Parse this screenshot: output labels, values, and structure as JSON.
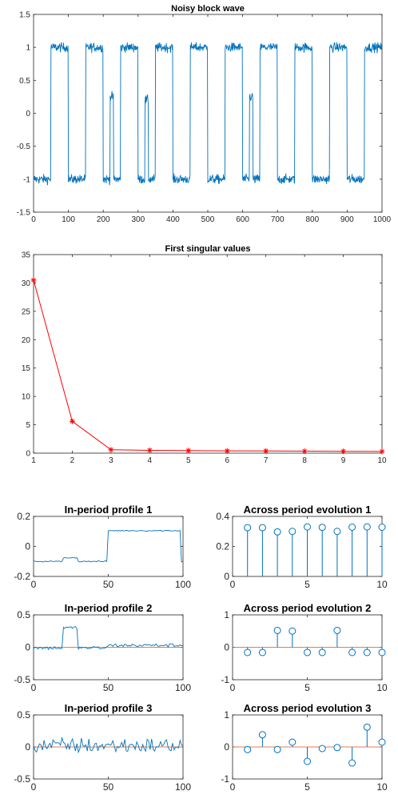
{
  "colors": {
    "signal": "#0072BD",
    "singular": "#FF0000",
    "zero_line": "#D95319",
    "axis": "#262626",
    "background": "#ffffff"
  },
  "chart_data": [
    {
      "id": "block",
      "type": "line",
      "title": "Noisy block wave",
      "xlim": [
        0,
        1000
      ],
      "ylim": [
        -1.5,
        1.5
      ],
      "xticks": [
        0,
        100,
        200,
        300,
        400,
        500,
        600,
        700,
        800,
        900,
        1000
      ],
      "yticks": [
        -1.5,
        -1,
        -0.5,
        0,
        0.5,
        1,
        1.5
      ],
      "xtick_labels": [
        "0",
        "100",
        "200",
        "300",
        "400",
        "500",
        "600",
        "700",
        "800",
        "900",
        "1000"
      ],
      "ytick_labels": [
        "-1.5",
        "-1",
        "-0.5",
        "0",
        "0.5",
        "1",
        "1.5"
      ],
      "noise": 0.05,
      "series": [
        {
          "segments": [
            [
              0,
              50,
              -1
            ],
            [
              50,
              100,
              1
            ],
            [
              100,
              150,
              -1
            ],
            [
              150,
              200,
              1
            ],
            [
              200,
              220,
              -1
            ],
            [
              220,
              230,
              0.25
            ],
            [
              230,
              250,
              -1
            ],
            [
              250,
              300,
              1
            ],
            [
              300,
              320,
              -1
            ],
            [
              320,
              330,
              0.2
            ],
            [
              330,
              350,
              -1
            ],
            [
              350,
              400,
              1
            ],
            [
              400,
              450,
              -1
            ],
            [
              450,
              500,
              1
            ],
            [
              500,
              550,
              -1
            ],
            [
              550,
              600,
              1
            ],
            [
              600,
              620,
              -1
            ],
            [
              620,
              630,
              0.25
            ],
            [
              630,
              650,
              -1
            ],
            [
              650,
              700,
              1
            ],
            [
              700,
              750,
              -1
            ],
            [
              750,
              800,
              1
            ],
            [
              800,
              850,
              -1
            ],
            [
              850,
              900,
              1
            ],
            [
              900,
              950,
              -1
            ],
            [
              950,
              1000,
              1
            ]
          ]
        }
      ]
    },
    {
      "id": "sv",
      "type": "line",
      "title": "First singular values",
      "xlim": [
        1,
        10
      ],
      "ylim": [
        0,
        35
      ],
      "xticks": [
        1,
        2,
        3,
        4,
        5,
        6,
        7,
        8,
        9,
        10
      ],
      "yticks": [
        0,
        5,
        10,
        15,
        20,
        25,
        30,
        35
      ],
      "xtick_labels": [
        "1",
        "2",
        "3",
        "4",
        "5",
        "6",
        "7",
        "8",
        "9",
        "10"
      ],
      "ytick_labels": [
        "0",
        "5",
        "10",
        "15",
        "20",
        "25",
        "30",
        "35"
      ],
      "marker": "asterisk",
      "series": [
        {
          "x": [
            1,
            2,
            3,
            4,
            5,
            6,
            7,
            8,
            9,
            10
          ],
          "values": [
            30.5,
            5.6,
            0.6,
            0.5,
            0.45,
            0.4,
            0.38,
            0.35,
            0.32,
            0.3
          ]
        }
      ]
    },
    {
      "id": "prof1",
      "type": "line",
      "title": "In-period profile 1",
      "xlim": [
        0,
        100
      ],
      "ylim": [
        -0.2,
        0.2
      ],
      "xticks": [
        0,
        50,
        100
      ],
      "yticks": [
        -0.2,
        0,
        0.2
      ],
      "xtick_labels": [
        "0",
        "50",
        "100"
      ],
      "ytick_labels": [
        "-0.2",
        "0",
        "0.2"
      ],
      "noise": 0.003,
      "series": [
        {
          "segments": [
            [
              0,
              20,
              -0.1
            ],
            [
              20,
              30,
              -0.075
            ],
            [
              30,
              50,
              -0.1
            ],
            [
              50,
              99,
              0.105
            ],
            [
              99,
              100,
              -0.1
            ]
          ]
        }
      ]
    },
    {
      "id": "prof2",
      "type": "line",
      "title": "In-period profile 2",
      "xlim": [
        0,
        100
      ],
      "ylim": [
        -0.5,
        0.5
      ],
      "xticks": [
        0,
        50,
        100
      ],
      "yticks": [
        -0.5,
        0,
        0.5
      ],
      "xtick_labels": [
        "0",
        "50",
        "100"
      ],
      "ytick_labels": [
        "-0.5",
        "0",
        "0.5"
      ],
      "noise": 0.02,
      "zero_line": true,
      "series": [
        {
          "segments": [
            [
              0,
              20,
              -0.01
            ],
            [
              20,
              30,
              0.3
            ],
            [
              30,
              50,
              -0.01
            ],
            [
              50,
              100,
              0.03
            ]
          ]
        }
      ]
    },
    {
      "id": "prof3",
      "type": "line",
      "title": "In-period profile 3",
      "xlim": [
        0,
        100
      ],
      "ylim": [
        -0.5,
        0.5
      ],
      "xticks": [
        0,
        50,
        100
      ],
      "yticks": [
        -0.5,
        0,
        0.5
      ],
      "xtick_labels": [
        "0",
        "50",
        "100"
      ],
      "ytick_labels": [
        "-0.5",
        "0",
        "0.5"
      ],
      "noise": 0.09,
      "zero_line": true,
      "series": [
        {
          "segments": [
            [
              0,
              100,
              0.02
            ]
          ]
        }
      ]
    },
    {
      "id": "evo1",
      "type": "stem",
      "title": "Across period evolution 1",
      "xlim": [
        0,
        10
      ],
      "ylim": [
        0,
        0.4
      ],
      "xticks": [
        0,
        5,
        10
      ],
      "yticks": [
        0,
        0.2,
        0.4
      ],
      "xtick_labels": [
        "0",
        "5",
        "10"
      ],
      "ytick_labels": [
        "0",
        "0.2",
        "0.4"
      ],
      "series": [
        {
          "x": [
            1,
            2,
            3,
            4,
            5,
            6,
            7,
            8,
            9,
            10
          ],
          "values": [
            0.325,
            0.325,
            0.297,
            0.3,
            0.33,
            0.327,
            0.3,
            0.328,
            0.33,
            0.328
          ]
        }
      ]
    },
    {
      "id": "evo2",
      "type": "stem",
      "title": "Across period evolution 2",
      "xlim": [
        0,
        10
      ],
      "ylim": [
        -1,
        1
      ],
      "xticks": [
        0,
        5,
        10
      ],
      "yticks": [
        -1,
        0,
        1
      ],
      "xtick_labels": [
        "0",
        "5",
        "10"
      ],
      "ytick_labels": [
        "-1",
        "0",
        "1"
      ],
      "zero_line": true,
      "series": [
        {
          "x": [
            1,
            2,
            3,
            4,
            5,
            6,
            7,
            8,
            9,
            10
          ],
          "values": [
            -0.16,
            -0.16,
            0.52,
            0.5,
            -0.16,
            -0.16,
            0.52,
            -0.16,
            -0.16,
            -0.16
          ]
        }
      ]
    },
    {
      "id": "evo3",
      "type": "stem",
      "title": "Across period evolution 3",
      "xlim": [
        0,
        10
      ],
      "ylim": [
        -1,
        1
      ],
      "xticks": [
        0,
        5,
        10
      ],
      "yticks": [
        -1,
        0,
        1
      ],
      "xtick_labels": [
        "0",
        "5",
        "10"
      ],
      "ytick_labels": [
        "-1",
        "0",
        "1"
      ],
      "zero_line": true,
      "series": [
        {
          "x": [
            1,
            2,
            3,
            4,
            5,
            6,
            7,
            8,
            9,
            10
          ],
          "values": [
            -0.08,
            0.38,
            -0.08,
            0.15,
            -0.45,
            -0.05,
            -0.02,
            -0.5,
            0.62,
            0.15
          ]
        }
      ]
    }
  ]
}
